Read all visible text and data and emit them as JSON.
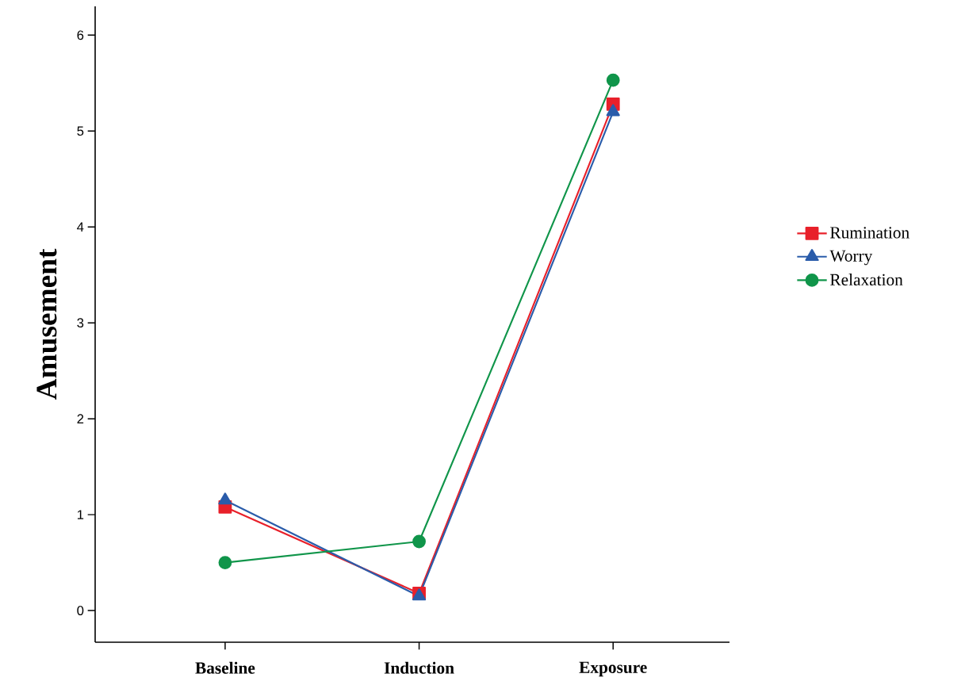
{
  "chart_data": {
    "type": "line",
    "ylabel": "Amusement",
    "categories": [
      "Baseline",
      "Induction",
      "Exposure"
    ],
    "series": [
      {
        "name": "Rumination",
        "color": "#e8202a",
        "marker": "square",
        "values": [
          1.08,
          0.18,
          5.28
        ]
      },
      {
        "name": "Worry",
        "color": "#2a5caa",
        "marker": "triangle",
        "values": [
          1.15,
          0.15,
          5.2
        ]
      },
      {
        "name": "Relaxation",
        "color": "#10954a",
        "marker": "circle",
        "values": [
          0.5,
          0.72,
          5.53
        ]
      }
    ],
    "ylim": [
      -0.33,
      6.3
    ],
    "yticks": [
      0,
      1,
      2,
      3,
      4,
      5,
      6
    ],
    "legend": "right",
    "line_style": "solid"
  }
}
